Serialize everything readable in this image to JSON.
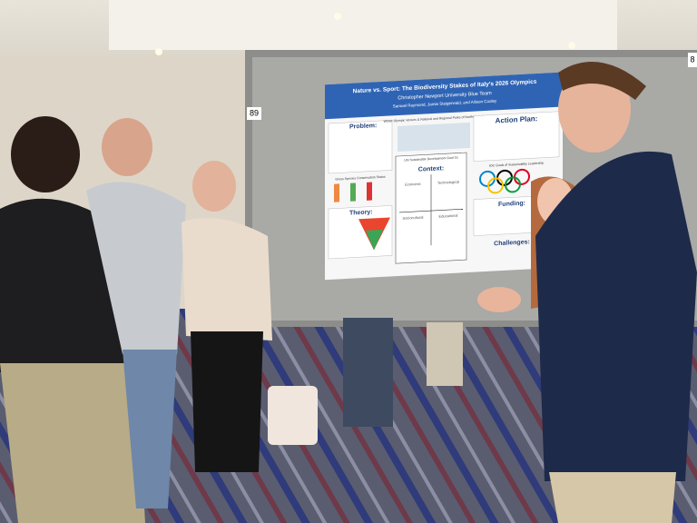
{
  "board_numbers": [
    "89",
    "8"
  ],
  "poster": {
    "title": "Nature vs. Sport: The Biodiversity Stakes of Italy's 2026 Olympics",
    "team": "Christopher Newport University Blue Team",
    "authors": "Samuel Raymond, Jamie Steigerwald, and Allison Cooley",
    "sections": {
      "problem": "Problem:",
      "action_plan": "Action Plan:",
      "context": "Context:",
      "theory": "Theory:",
      "funding": "Funding:",
      "challenges": "Challenges:"
    },
    "captions": {
      "map": "Winter Olympic Venues & National and Regional Parks of Northern Italy",
      "status": "Gross Species Conservation Status",
      "sdg": "UN Sustainable Development Goal 15",
      "ioc": "IOC Goals of Sustainability Leadership"
    },
    "quadrants": [
      "Economic",
      "Technological",
      "Sociocultural",
      "Educational"
    ]
  }
}
